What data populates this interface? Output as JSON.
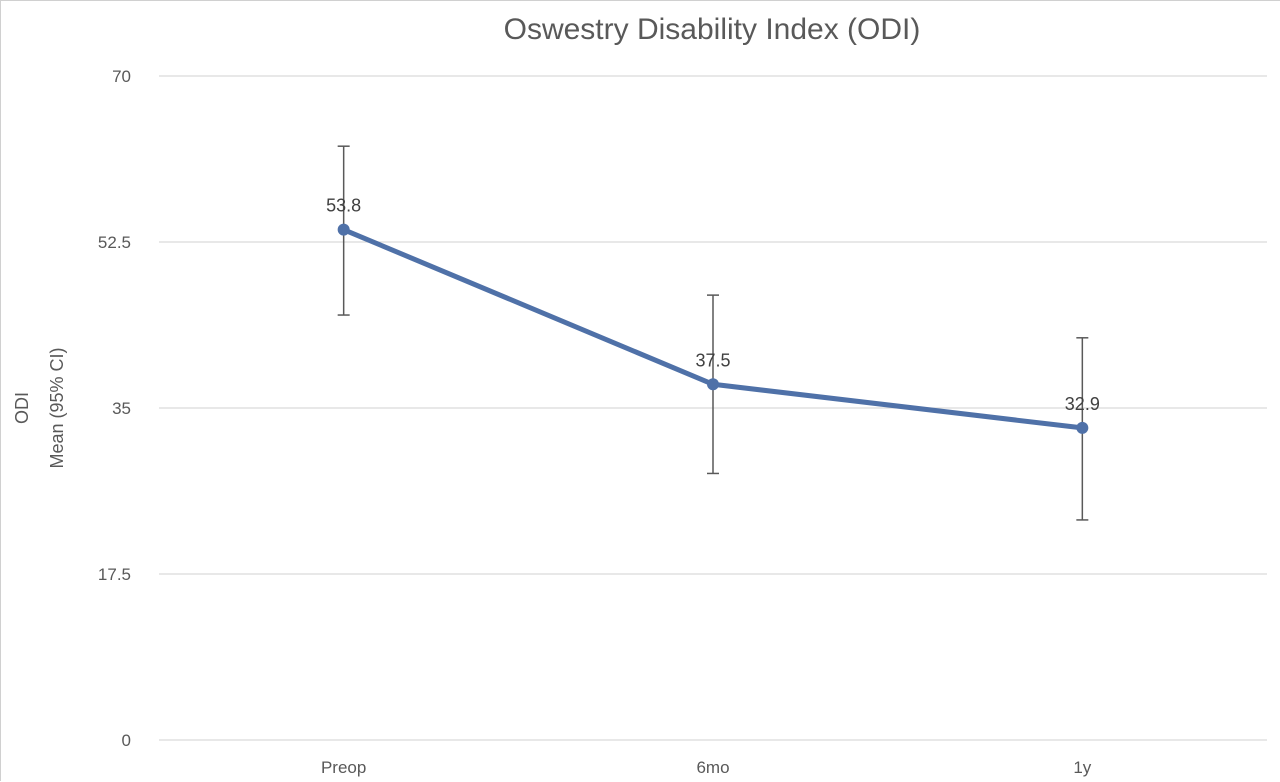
{
  "chart_data": {
    "type": "line",
    "title": "Oswestry Disability Index (ODI)",
    "ylabel_lines": [
      "ODI",
      "Mean (95% CI)"
    ],
    "xlabel": "",
    "categories": [
      "Preop",
      "6mo",
      "1y"
    ],
    "yticks": [
      "0",
      "17.5",
      "35",
      "52.5",
      "70"
    ],
    "ylim": [
      0,
      70
    ],
    "grid": true,
    "legend": "none",
    "series": [
      {
        "values": [
          53.8,
          37.5,
          32.9
        ],
        "labels": [
          "53.8",
          "37.5",
          "32.9"
        ],
        "ci_upper": [
          62.6,
          46.9,
          42.4
        ],
        "ci_lower": [
          44.8,
          28.1,
          23.2
        ],
        "color": "#4f71a8"
      }
    ],
    "error_bar_color": "#595959",
    "grid_color": "#d9d9d9"
  }
}
